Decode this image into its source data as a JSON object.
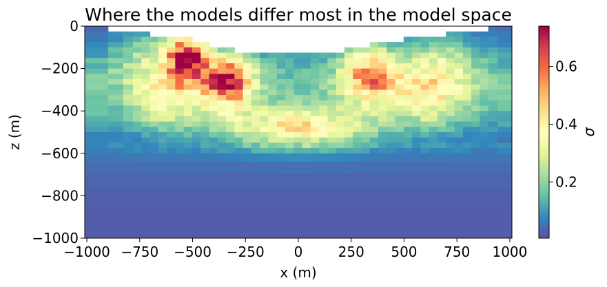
{
  "chart_data": {
    "type": "heatmap",
    "title": "Where the models differ most in the model space",
    "xlabel": "x (m)",
    "ylabel": "z (m)",
    "xlim": [
      -1010,
      1010
    ],
    "ylim": [
      -1000,
      0
    ],
    "xticks": [
      -1000,
      -750,
      -500,
      -250,
      0,
      250,
      500,
      750,
      1000
    ],
    "xtick_labels": [
      "−1000",
      "−750",
      "−500",
      "−250",
      "0",
      "250",
      "500",
      "750",
      "1000"
    ],
    "yticks": [
      0,
      -200,
      -400,
      -600,
      -800,
      -1000
    ],
    "ytick_labels": [
      "0",
      "−200",
      "−400",
      "−600",
      "−800",
      "−1000"
    ],
    "colormap": "Spectral_r",
    "colorbar": {
      "label": "σ",
      "range": [
        0.005,
        0.74
      ],
      "ticks": [
        0.2,
        0.4,
        0.6
      ],
      "tick_labels": [
        "0.2",
        "0.4",
        "0.6"
      ]
    },
    "surface_profile": {
      "x": [
        -1010,
        -900,
        -900,
        -800,
        -800,
        -700,
        -700,
        -600,
        -600,
        -500,
        -500,
        -420,
        -420,
        -320,
        -320,
        -200,
        -200,
        0,
        200,
        200,
        330,
        330,
        420,
        420,
        500,
        500,
        600,
        600,
        700,
        700,
        780,
        780,
        880,
        880,
        1010
      ],
      "z": [
        0,
        0,
        -25,
        -25,
        -35,
        -35,
        -50,
        -50,
        -55,
        -55,
        -70,
        -70,
        -100,
        -100,
        -115,
        -115,
        -125,
        -125,
        -125,
        -95,
        -95,
        -85,
        -85,
        -70,
        -70,
        -55,
        -55,
        -45,
        -45,
        -25,
        -25,
        -15,
        -15,
        0,
        0
      ]
    },
    "anomalies": [
      {
        "x": -530,
        "z": -150,
        "sx": 90,
        "sz": 110,
        "amp": 0.62
      },
      {
        "x": -340,
        "z": -260,
        "sx": 120,
        "sz": 120,
        "amp": 0.55
      },
      {
        "x": 340,
        "z": -230,
        "sx": 130,
        "sz": 130,
        "amp": 0.42
      },
      {
        "x": 0,
        "z": -480,
        "sx": 340,
        "sz": 90,
        "amp": 0.32
      },
      {
        "x": -620,
        "z": -330,
        "sx": 160,
        "sz": 150,
        "amp": 0.22
      },
      {
        "x": 620,
        "z": -310,
        "sx": 170,
        "sz": 150,
        "amp": 0.24
      },
      {
        "x": -720,
        "z": -140,
        "sx": 150,
        "sz": 120,
        "amp": 0.12
      },
      {
        "x": 700,
        "z": -150,
        "sx": 150,
        "sz": 120,
        "amp": 0.11
      }
    ]
  }
}
